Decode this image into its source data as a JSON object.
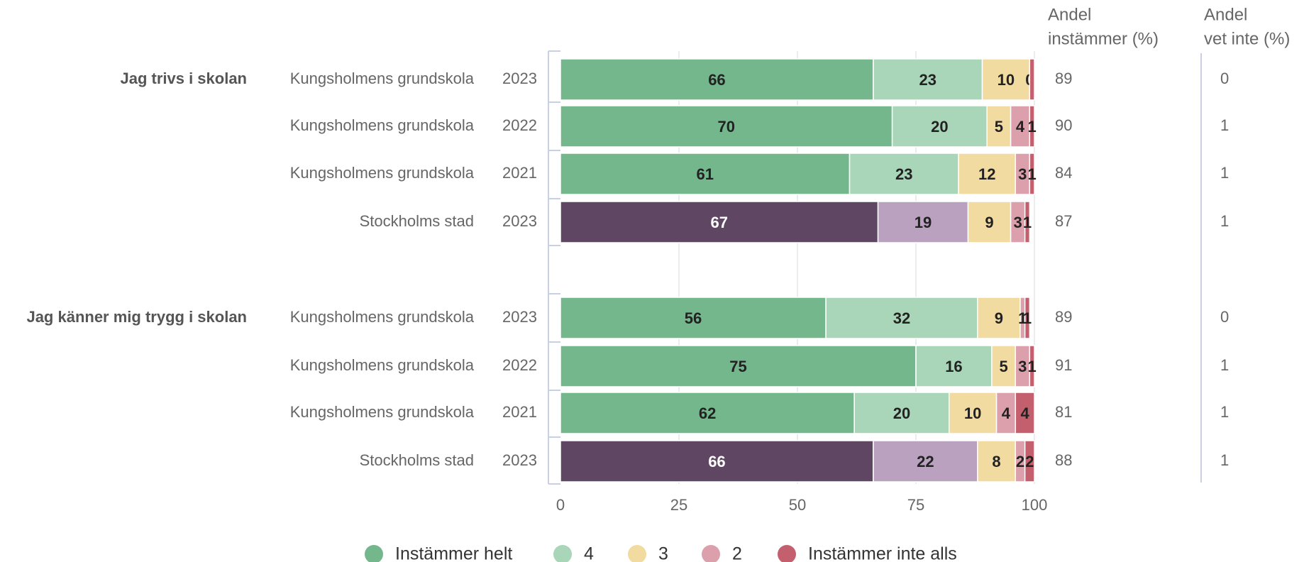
{
  "colors": {
    "cat1": "#74b78d",
    "cat2": "#a9d6b8",
    "cat3": "#f2dba0",
    "cat4": "#dba0ab",
    "cat5": "#c4606d",
    "stockholm1": "#5f4764",
    "stockholm2": "#b9a1bf",
    "axis": "#c9d0e3",
    "grid": "#e4e7ec",
    "text": "#666666",
    "label_dark": "#222222",
    "label_light": "#ffffff"
  },
  "chart_data": {
    "type": "bar",
    "orientation": "horizontal",
    "stacked": true,
    "xlim": [
      0,
      100
    ],
    "xticks": [
      0,
      25,
      50,
      75,
      100
    ],
    "grid": true,
    "legend_position": "bottom",
    "legend": [
      "Instämmer helt",
      "4",
      "3",
      "2",
      "Instämmer inte alls"
    ],
    "column_headers": {
      "agree": [
        "Andel",
        "instämmer (%)"
      ],
      "dontknow": [
        "Andel",
        "vet inte (%)"
      ]
    },
    "groups": [
      {
        "question": "Jag trivs i skolan",
        "rows": [
          {
            "unit": "Kungsholmens grundskola",
            "year": "2023",
            "values": [
              66,
              23,
              10,
              0,
              1
            ],
            "labels": [
              "66",
              "23",
              "10",
              "0",
              ""
            ],
            "agree": "89",
            "dontknow": "0",
            "palette": "school"
          },
          {
            "unit": "Kungsholmens grundskola",
            "year": "2022",
            "values": [
              70,
              20,
              5,
              4,
              1
            ],
            "labels": [
              "70",
              "20",
              "5",
              "4",
              "1"
            ],
            "agree": "90",
            "dontknow": "1",
            "palette": "school"
          },
          {
            "unit": "Kungsholmens grundskola",
            "year": "2021",
            "values": [
              61,
              23,
              12,
              3,
              1
            ],
            "labels": [
              "61",
              "23",
              "12",
              "3",
              "1"
            ],
            "agree": "84",
            "dontknow": "1",
            "palette": "school"
          },
          {
            "unit": "Stockholms stad",
            "year": "2023",
            "values": [
              67,
              19,
              9,
              3,
              1
            ],
            "labels": [
              "67",
              "19",
              "9",
              "3",
              "1"
            ],
            "agree": "87",
            "dontknow": "1",
            "palette": "city"
          }
        ]
      },
      {
        "question": "Jag känner mig trygg i skolan",
        "rows": [
          {
            "unit": "Kungsholmens grundskola",
            "year": "2023",
            "values": [
              56,
              32,
              9,
              1,
              1
            ],
            "labels": [
              "56",
              "32",
              "9",
              "1",
              "1"
            ],
            "agree": "89",
            "dontknow": "0",
            "palette": "school"
          },
          {
            "unit": "Kungsholmens grundskola",
            "year": "2022",
            "values": [
              75,
              16,
              5,
              3,
              1
            ],
            "labels": [
              "75",
              "16",
              "5",
              "3",
              "1"
            ],
            "agree": "91",
            "dontknow": "1",
            "palette": "school"
          },
          {
            "unit": "Kungsholmens grundskola",
            "year": "2021",
            "values": [
              62,
              20,
              10,
              4,
              4
            ],
            "labels": [
              "62",
              "20",
              "10",
              "4",
              "4"
            ],
            "agree": "81",
            "dontknow": "1",
            "palette": "school"
          },
          {
            "unit": "Stockholms stad",
            "year": "2023",
            "values": [
              66,
              22,
              8,
              2,
              2
            ],
            "labels": [
              "66",
              "22",
              "8",
              "2",
              "2"
            ],
            "agree": "88",
            "dontknow": "1",
            "palette": "city"
          }
        ]
      }
    ]
  }
}
